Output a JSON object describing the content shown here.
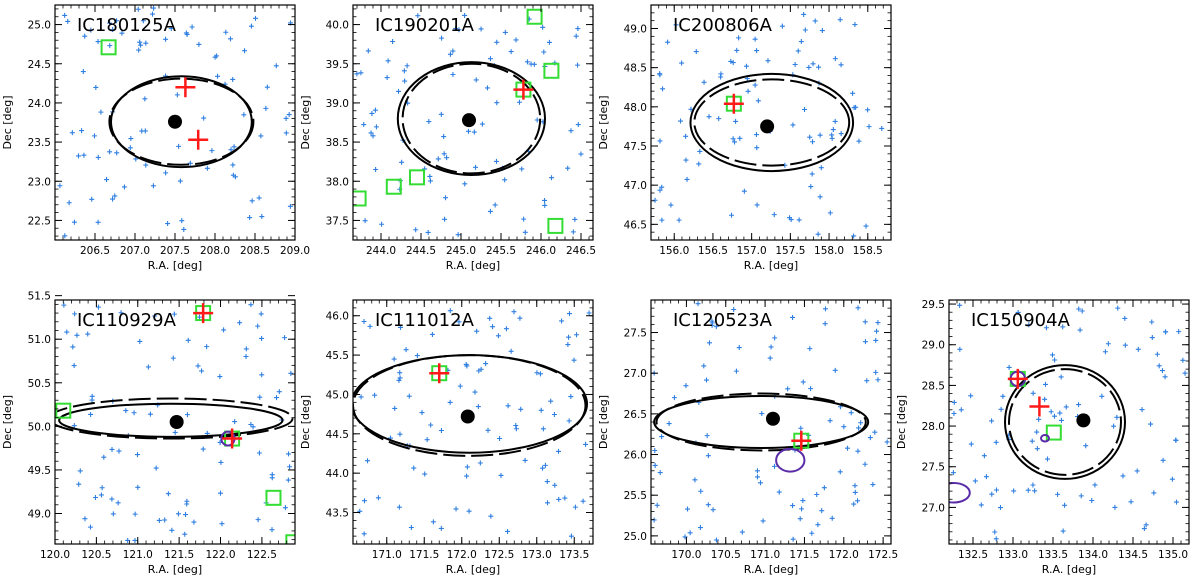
{
  "figure": {
    "ncols": 4,
    "nrows": 2
  },
  "chart_data": [
    {
      "type": "scatter",
      "title": "IC180125A",
      "xlabel": "R.A. [deg]",
      "ylabel": "Dec [deg]",
      "xlim": [
        206.0,
        209.0
      ],
      "ylim": [
        22.25,
        25.25
      ],
      "xticks": [
        "206.5",
        "207.0",
        "207.5",
        "208.0",
        "208.5",
        "209.0"
      ],
      "yticks": [
        "22.5",
        "23.0",
        "23.5",
        "24.0",
        "24.5",
        "25.0"
      ],
      "center": [
        207.5,
        23.76
      ],
      "ellipse_solid": {
        "cx": 207.58,
        "cy": 23.76,
        "rx": 0.88,
        "ry": 0.58
      },
      "ellipse_dashed": {
        "cx": 207.58,
        "cy": 23.76,
        "rx": 0.9,
        "ry": 0.55
      },
      "red_crosses": [
        [
          207.63,
          24.2
        ],
        [
          207.79,
          23.53
        ]
      ],
      "green_squares": [
        [
          206.67,
          24.71
        ]
      ],
      "purple_ellipses": [],
      "n_stars": 95
    },
    {
      "type": "scatter",
      "title": "IC190201A",
      "xlabel": "R.A. [deg]",
      "ylabel": "Dec [deg]",
      "xlim": [
        243.65,
        246.65
      ],
      "ylim": [
        37.25,
        40.25
      ],
      "xticks": [
        "244.0",
        "244.5",
        "245.0",
        "245.5",
        "246.0",
        "246.5"
      ],
      "yticks": [
        "37.5",
        "38.0",
        "38.5",
        "39.0",
        "39.5",
        "40.0"
      ],
      "center": [
        245.1,
        38.78
      ],
      "ellipse_solid": {
        "cx": 245.13,
        "cy": 38.8,
        "rx": 0.92,
        "ry": 0.72
      },
      "ellipse_dashed": {
        "cx": 245.13,
        "cy": 38.8,
        "rx": 0.86,
        "ry": 0.7
      },
      "red_crosses": [
        [
          245.78,
          39.17
        ]
      ],
      "green_squares": [
        [
          245.78,
          39.17
        ],
        [
          246.13,
          39.41
        ],
        [
          245.92,
          40.1
        ],
        [
          244.45,
          38.05
        ],
        [
          244.16,
          37.93
        ],
        [
          243.72,
          37.78
        ],
        [
          246.18,
          37.43
        ]
      ],
      "purple_ellipses": [],
      "n_stars": 95
    },
    {
      "type": "scatter",
      "title": "IC200806A",
      "xlabel": "R.A. [deg]",
      "ylabel": "Dec [deg]",
      "xlim": [
        155.7,
        158.8
      ],
      "ylim": [
        46.3,
        49.3
      ],
      "xticks": [
        "156.0",
        "156.5",
        "157.0",
        "157.5",
        "158.0",
        "158.5"
      ],
      "yticks": [
        "46.5",
        "47.0",
        "47.5",
        "48.0",
        "48.5",
        "49.0"
      ],
      "center": [
        157.2,
        47.75
      ],
      "ellipse_solid": {
        "cx": 157.26,
        "cy": 47.8,
        "rx": 1.05,
        "ry": 0.62
      },
      "ellipse_dashed": {
        "cx": 157.26,
        "cy": 47.8,
        "rx": 1.0,
        "ry": 0.55
      },
      "red_crosses": [
        [
          156.77,
          48.04
        ]
      ],
      "green_squares": [
        [
          156.77,
          48.04
        ]
      ],
      "purple_ellipses": [],
      "n_stars": 95
    },
    {
      "type": "scatter",
      "title": "IC110929A",
      "xlabel": "R.A. [deg]",
      "ylabel": "Dec [deg]",
      "xlim": [
        120.0,
        122.9
      ],
      "ylim": [
        48.65,
        51.45
      ],
      "xticks": [
        "120.0",
        "120.5",
        "121.0",
        "121.5",
        "122.0",
        "122.5"
      ],
      "yticks": [
        "49.0",
        "49.5",
        "50.0",
        "50.5",
        "51.0",
        "51.5"
      ],
      "center": [
        121.47,
        50.05
      ],
      "ellipse_solid": {
        "cx": 121.4,
        "cy": 50.07,
        "rx": 1.35,
        "ry": 0.19
      },
      "ellipse_dashed": {
        "cx": 121.4,
        "cy": 50.09,
        "rx": 1.47,
        "ry": 0.23
      },
      "red_crosses": [
        [
          121.79,
          51.3
        ],
        [
          122.14,
          49.86
        ]
      ],
      "green_squares": [
        [
          121.79,
          51.3
        ],
        [
          122.14,
          49.86
        ],
        [
          120.1,
          50.18
        ],
        [
          122.64,
          49.18
        ],
        [
          122.88,
          48.67
        ]
      ],
      "purple_ellipses": [
        {
          "cx": 122.09,
          "cy": 49.86,
          "rx": 0.08,
          "ry": 0.08
        }
      ],
      "n_stars": 95
    },
    {
      "type": "scatter",
      "title": "IC111012A",
      "xlabel": "R.A. [deg]",
      "ylabel": "Dec [deg]",
      "xlim": [
        170.55,
        173.75
      ],
      "ylim": [
        43.1,
        46.2
      ],
      "xticks": [
        "171.0",
        "171.5",
        "172.0",
        "172.5",
        "173.0",
        "173.5"
      ],
      "yticks": [
        "43.5",
        "44.0",
        "44.5",
        "45.0",
        "45.5",
        "46.0"
      ],
      "center": [
        172.08,
        44.72
      ],
      "ellipse_solid": {
        "cx": 172.1,
        "cy": 44.88,
        "rx": 1.57,
        "ry": 0.62
      },
      "ellipse_dashed": {
        "cx": 172.1,
        "cy": 44.86,
        "rx": 1.55,
        "ry": 0.64
      },
      "red_crosses": [
        [
          171.7,
          45.27
        ]
      ],
      "green_squares": [
        [
          171.7,
          45.27
        ]
      ],
      "purple_ellipses": [],
      "n_stars": 95
    },
    {
      "type": "scatter",
      "title": "IC120523A",
      "xlabel": "R.A. [deg]",
      "ylabel": "Dec [deg]",
      "xlim": [
        169.55,
        172.6
      ],
      "ylim": [
        24.9,
        27.9
      ],
      "xticks": [
        "170.0",
        "170.5",
        "171.0",
        "171.5",
        "172.0",
        "172.5"
      ],
      "yticks": [
        "25.0",
        "25.5",
        "26.0",
        "26.5",
        "27.0",
        "27.5"
      ],
      "center": [
        171.1,
        26.44
      ],
      "ellipse_solid": {
        "cx": 170.95,
        "cy": 26.4,
        "rx": 1.36,
        "ry": 0.32
      },
      "ellipse_dashed": {
        "cx": 170.95,
        "cy": 26.4,
        "rx": 1.33,
        "ry": 0.35
      },
      "red_crosses": [
        [
          171.46,
          26.17
        ]
      ],
      "green_squares": [
        [
          171.46,
          26.17
        ]
      ],
      "purple_ellipses": [
        {
          "cx": 171.32,
          "cy": 25.93,
          "rx": 0.18,
          "ry": 0.14
        }
      ],
      "n_stars": 95
    },
    {
      "type": "scatter",
      "title": "IC150904A",
      "xlabel": "R.A. [deg]",
      "ylabel": "Dec [deg]",
      "xlim": [
        132.2,
        135.2
      ],
      "ylim": [
        26.55,
        29.55
      ],
      "xticks": [
        "132.5",
        "133.0",
        "133.5",
        "134.0",
        "134.5",
        "135.0"
      ],
      "yticks": [
        "27.0",
        "27.5",
        "28.0",
        "28.5",
        "29.0",
        "29.5"
      ],
      "center": [
        133.88,
        28.07
      ],
      "ellipse_solid": {
        "cx": 133.65,
        "cy": 28.05,
        "rx": 0.75,
        "ry": 0.7
      },
      "ellipse_dashed": {
        "cx": 133.65,
        "cy": 28.05,
        "rx": 0.7,
        "ry": 0.65
      },
      "red_crosses": [
        [
          133.06,
          28.58
        ],
        [
          133.33,
          28.24
        ]
      ],
      "green_squares": [
        [
          133.06,
          28.58
        ],
        [
          133.51,
          27.92
        ]
      ],
      "purple_ellipses": [
        {
          "cx": 133.06,
          "cy": 28.58,
          "rx": 0.09,
          "ry": 0.09
        },
        {
          "cx": 133.4,
          "cy": 27.85,
          "rx": 0.05,
          "ry": 0.04
        },
        {
          "cx": 132.26,
          "cy": 27.18,
          "rx": 0.2,
          "ry": 0.12
        }
      ],
      "n_stars": 95
    }
  ],
  "colors": {
    "star": "#2f7fe0",
    "cross": "#ff1a1a",
    "square": "#33dd33",
    "purple": "#5a2ca8",
    "ellipse": "#000000"
  }
}
